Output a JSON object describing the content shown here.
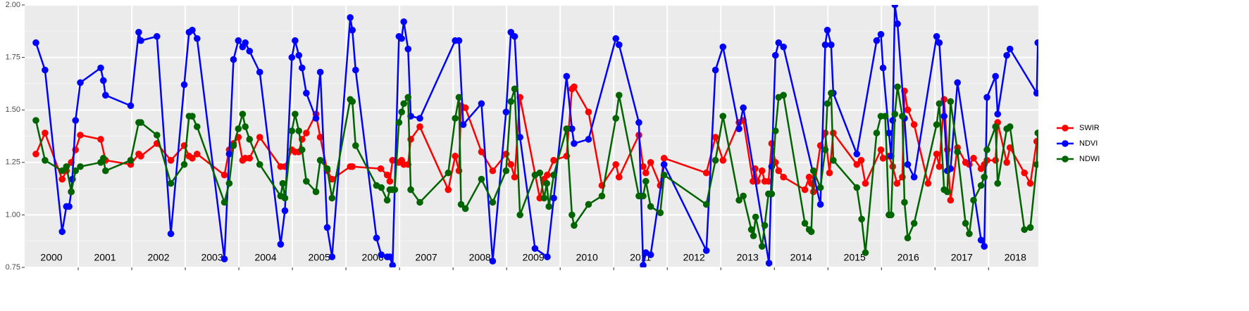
{
  "chart_data": {
    "type": "line",
    "year_labels": [
      "2000",
      "2001",
      "2002",
      "2003",
      "2004",
      "2005",
      "2006",
      "2007",
      "2008",
      "2009",
      "2010",
      "2011",
      "2012",
      "2013",
      "2014",
      "2015",
      "2016",
      "2017",
      "2018"
    ],
    "xlim": [
      2000,
      2018.93
    ],
    "xticks": [
      2001,
      2002,
      2003,
      2004,
      2005,
      2006,
      2007,
      2008,
      2009,
      2010,
      2011,
      2012,
      2013,
      2014,
      2015,
      2016,
      2017,
      2018
    ],
    "ylim": [
      0.75,
      2.0
    ],
    "yticks": [
      0.75,
      {
        "value": 1.0,
        "label": "1.00"
      },
      1.25,
      {
        "value": 1.5,
        "label": "1.50"
      },
      1.75,
      {
        "value": 2.0,
        "label": "2.00"
      }
    ],
    "grid": true,
    "legend": "right",
    "series": [
      {
        "name": "SWIR",
        "color": "#ff0000",
        "x": [
          2000.21,
          2000.38,
          2000.7,
          2000.78,
          2000.87,
          2000.95,
          2001.04,
          2001.42,
          2001.51,
          2001.98,
          2002.13,
          2002.17,
          2002.47,
          2002.73,
          2002.98,
          2003.07,
          2003.13,
          2003.22,
          2003.73,
          2003.82,
          2003.9,
          2003.99,
          2004.07,
          2004.12,
          2004.2,
          2004.39,
          2004.78,
          2004.86,
          2004.99,
          2005.05,
          2005.12,
          2005.18,
          2005.26,
          2005.44,
          2005.52,
          2005.65,
          2005.74,
          2006.08,
          2006.12,
          2006.65,
          2006.77,
          2006.82,
          2006.87,
          2006.99,
          2007.04,
          2007.08,
          2007.16,
          2007.21,
          2007.38,
          2007.91,
          2008.04,
          2008.11,
          2008.15,
          2008.23,
          2008.53,
          2008.74,
          2008.99,
          2009.08,
          2009.15,
          2009.25,
          2009.62,
          2009.7,
          2009.76,
          2009.88,
          2010.12,
          2010.22,
          2010.26,
          2010.53,
          2010.78,
          2011.04,
          2011.1,
          2011.47,
          2011.55,
          2011.6,
          2011.69,
          2011.87,
          2011.94,
          2012.73,
          2012.9,
          2013.04,
          2013.34,
          2013.42,
          2013.6,
          2013.64,
          2013.68,
          2013.77,
          2013.82,
          2013.89,
          2013.95,
          2014.02,
          2014.08,
          2014.17,
          2014.57,
          2014.65,
          2014.69,
          2014.73,
          2014.86,
          2014.95,
          2015.03,
          2015.1,
          2015.54,
          2015.62,
          2015.7,
          2015.99,
          2016.03,
          2016.14,
          2016.21,
          2016.29,
          2016.39,
          2016.43,
          2016.49,
          2016.61,
          2016.87,
          2017.03,
          2017.08,
          2017.17,
          2017.23,
          2017.29,
          2017.42,
          2017.57,
          2017.64,
          2017.72,
          2017.86,
          2017.92,
          2017.97,
          2018.13,
          2018.17,
          2018.34,
          2018.4,
          2018.67,
          2018.78,
          2018.9
        ],
        "values": [
          1.29,
          1.39,
          1.17,
          1.21,
          1.25,
          1.31,
          1.38,
          1.36,
          1.26,
          1.24,
          1.29,
          1.28,
          1.34,
          1.26,
          1.33,
          1.28,
          1.27,
          1.29,
          1.19,
          1.31,
          1.34,
          1.37,
          1.26,
          1.27,
          1.27,
          1.37,
          1.23,
          1.23,
          1.31,
          1.3,
          1.3,
          1.36,
          1.39,
          1.48,
          1.37,
          1.21,
          1.17,
          1.23,
          1.23,
          1.22,
          1.19,
          1.16,
          1.26,
          1.25,
          1.26,
          1.24,
          1.24,
          1.36,
          1.42,
          1.12,
          1.28,
          1.21,
          1.52,
          1.51,
          1.3,
          1.21,
          1.29,
          1.24,
          1.18,
          1.56,
          1.08,
          1.17,
          1.19,
          1.26,
          1.28,
          1.6,
          1.61,
          1.49,
          1.14,
          1.24,
          1.18,
          1.38,
          1.23,
          1.2,
          1.25,
          1.14,
          1.27,
          1.2,
          1.37,
          1.26,
          1.44,
          1.45,
          1.16,
          1.22,
          1.16,
          1.21,
          1.16,
          1.16,
          1.34,
          1.25,
          1.21,
          1.18,
          1.12,
          1.18,
          1.15,
          1.11,
          1.33,
          1.39,
          1.2,
          1.39,
          1.24,
          1.26,
          1.15,
          1.31,
          1.27,
          1.28,
          1.23,
          1.15,
          1.18,
          1.59,
          1.5,
          1.43,
          1.15,
          1.29,
          1.23,
          1.55,
          1.31,
          1.07,
          1.32,
          1.25,
          1.24,
          1.27,
          1.22,
          1.24,
          1.26,
          1.26,
          1.44,
          1.25,
          1.32,
          1.2,
          1.15,
          1.35
        ]
      },
      {
        "name": "NDVI",
        "color": "#0000ff",
        "x": [
          2000.21,
          2000.38,
          2000.7,
          2000.78,
          2000.83,
          2000.87,
          2000.89,
          2000.95,
          2001.04,
          2001.42,
          2001.47,
          2001.51,
          2001.98,
          2002.13,
          2002.17,
          2002.47,
          2002.73,
          2002.98,
          2003.07,
          2003.13,
          2003.22,
          2003.73,
          2003.82,
          2003.9,
          2003.99,
          2004.07,
          2004.12,
          2004.2,
          2004.39,
          2004.78,
          2004.86,
          2004.99,
          2005.05,
          2005.12,
          2005.18,
          2005.26,
          2005.44,
          2005.52,
          2005.65,
          2005.74,
          2006.08,
          2006.12,
          2006.18,
          2006.57,
          2006.66,
          2006.77,
          2006.82,
          2006.87,
          2006.99,
          2007.04,
          2007.08,
          2007.16,
          2007.21,
          2007.38,
          2008.04,
          2008.11,
          2008.19,
          2008.53,
          2008.74,
          2008.99,
          2009.08,
          2009.15,
          2009.25,
          2009.53,
          2009.76,
          2009.88,
          2010.12,
          2010.22,
          2010.26,
          2010.53,
          2011.04,
          2011.1,
          2011.47,
          2011.55,
          2011.6,
          2011.69,
          2011.94,
          2012.73,
          2012.9,
          2013.04,
          2013.34,
          2013.42,
          2013.9,
          2013.95,
          2014.02,
          2014.08,
          2014.17,
          2014.86,
          2014.95,
          2014.99,
          2015.06,
          2015.1,
          2015.54,
          2015.91,
          2015.99,
          2016.03,
          2016.14,
          2016.18,
          2016.21,
          2016.25,
          2016.3,
          2016.43,
          2016.49,
          2016.61,
          2017.03,
          2017.08,
          2017.17,
          2017.23,
          2017.29,
          2017.42,
          2017.86,
          2017.92,
          2017.97,
          2018.13,
          2018.17,
          2018.34,
          2018.4,
          2018.9,
          2018.92
        ],
        "values": [
          1.82,
          1.69,
          0.92,
          1.04,
          1.04,
          1.11,
          1.17,
          1.45,
          1.63,
          1.7,
          1.64,
          1.57,
          1.52,
          1.87,
          1.83,
          1.85,
          0.91,
          1.62,
          1.87,
          1.88,
          1.84,
          0.79,
          1.29,
          1.74,
          1.83,
          1.8,
          1.82,
          1.78,
          1.68,
          0.86,
          1.02,
          1.75,
          1.83,
          1.76,
          1.7,
          1.58,
          1.46,
          1.68,
          0.94,
          0.8,
          1.94,
          1.88,
          1.69,
          0.89,
          0.81,
          0.8,
          0.8,
          0.76,
          1.85,
          1.84,
          1.92,
          1.79,
          1.47,
          1.46,
          1.83,
          1.83,
          1.43,
          1.53,
          0.78,
          1.49,
          1.87,
          1.85,
          1.37,
          0.84,
          0.8,
          1.08,
          1.66,
          1.41,
          1.34,
          1.36,
          1.84,
          1.81,
          1.44,
          0.76,
          0.82,
          0.81,
          1.24,
          0.83,
          1.69,
          1.8,
          1.41,
          1.51,
          0.77,
          1.23,
          1.76,
          1.82,
          1.8,
          1.05,
          1.81,
          1.88,
          1.81,
          1.58,
          1.29,
          1.83,
          1.86,
          1.7,
          1.39,
          1.28,
          1.45,
          2.0,
          1.91,
          1.46,
          1.24,
          1.18,
          1.85,
          1.82,
          1.47,
          1.21,
          1.22,
          1.63,
          0.88,
          0.85,
          1.56,
          1.66,
          1.48,
          1.76,
          1.79,
          1.58,
          1.82
        ]
      },
      {
        "name": "NDWI",
        "color": "#006400",
        "x": [
          2000.21,
          2000.38,
          2000.7,
          2000.78,
          2000.87,
          2000.95,
          2001.04,
          2001.42,
          2001.47,
          2001.51,
          2001.98,
          2002.13,
          2002.17,
          2002.47,
          2002.73,
          2002.98,
          2003.07,
          2003.13,
          2003.22,
          2003.73,
          2003.82,
          2003.9,
          2003.99,
          2004.07,
          2004.12,
          2004.2,
          2004.39,
          2004.78,
          2004.82,
          2004.86,
          2004.99,
          2005.05,
          2005.12,
          2005.18,
          2005.26,
          2005.44,
          2005.52,
          2005.65,
          2005.74,
          2006.08,
          2006.12,
          2006.18,
          2006.57,
          2006.66,
          2006.77,
          2006.82,
          2006.87,
          2006.91,
          2006.99,
          2007.04,
          2007.08,
          2007.16,
          2007.21,
          2007.38,
          2007.91,
          2008.04,
          2008.11,
          2008.15,
          2008.23,
          2008.53,
          2008.74,
          2008.99,
          2009.08,
          2009.15,
          2009.25,
          2009.53,
          2009.62,
          2009.7,
          2009.75,
          2009.79,
          2009.88,
          2010.12,
          2010.22,
          2010.26,
          2010.53,
          2010.78,
          2011.04,
          2011.1,
          2011.47,
          2011.55,
          2011.6,
          2011.69,
          2011.87,
          2011.94,
          2012.73,
          2012.9,
          2013.04,
          2013.34,
          2013.42,
          2013.57,
          2013.61,
          2013.65,
          2013.77,
          2013.82,
          2013.89,
          2013.95,
          2014.02,
          2014.08,
          2014.17,
          2014.57,
          2014.65,
          2014.69,
          2014.73,
          2014.86,
          2014.95,
          2014.99,
          2015.06,
          2015.1,
          2015.54,
          2015.63,
          2015.7,
          2015.91,
          2015.99,
          2016.07,
          2016.14,
          2016.18,
          2016.25,
          2016.3,
          2016.39,
          2016.43,
          2016.49,
          2016.61,
          2017.03,
          2017.08,
          2017.17,
          2017.23,
          2017.29,
          2017.42,
          2017.57,
          2017.64,
          2017.72,
          2017.86,
          2017.92,
          2017.97,
          2018.13,
          2018.17,
          2018.34,
          2018.4,
          2018.67,
          2018.78,
          2018.9,
          2018.92
        ],
        "values": [
          1.45,
          1.26,
          1.21,
          1.23,
          1.11,
          1.21,
          1.23,
          1.25,
          1.27,
          1.21,
          1.26,
          1.44,
          1.44,
          1.38,
          1.15,
          1.24,
          1.47,
          1.47,
          1.42,
          1.06,
          1.15,
          1.33,
          1.41,
          1.48,
          1.42,
          1.36,
          1.24,
          1.09,
          1.15,
          1.08,
          1.4,
          1.48,
          1.4,
          1.31,
          1.16,
          1.11,
          1.26,
          1.22,
          1.08,
          1.55,
          1.54,
          1.33,
          1.14,
          1.13,
          1.07,
          1.12,
          1.12,
          1.12,
          1.44,
          1.49,
          1.53,
          1.56,
          1.12,
          1.06,
          1.2,
          1.46,
          1.56,
          1.05,
          1.03,
          1.17,
          1.06,
          1.21,
          1.54,
          1.6,
          1.0,
          1.19,
          1.2,
          1.08,
          1.15,
          1.04,
          1.19,
          1.41,
          1.0,
          0.95,
          1.05,
          1.09,
          1.46,
          1.57,
          1.09,
          1.09,
          1.16,
          1.04,
          1.01,
          1.19,
          1.05,
          1.26,
          1.47,
          1.07,
          1.09,
          0.93,
          0.9,
          0.99,
          0.85,
          0.95,
          1.1,
          1.1,
          1.4,
          1.56,
          1.57,
          0.96,
          0.93,
          0.92,
          1.21,
          1.13,
          1.31,
          1.53,
          1.58,
          1.26,
          1.13,
          0.98,
          0.82,
          1.39,
          1.47,
          1.47,
          1.0,
          1.0,
          1.48,
          1.61,
          1.47,
          1.06,
          0.89,
          0.96,
          1.43,
          1.53,
          1.12,
          1.11,
          1.54,
          1.3,
          0.96,
          0.91,
          1.07,
          1.14,
          1.18,
          1.31,
          1.42,
          1.15,
          1.41,
          1.42,
          0.93,
          0.94,
          1.24,
          1.39
        ]
      }
    ]
  }
}
